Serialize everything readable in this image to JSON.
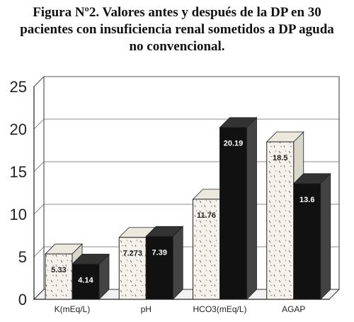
{
  "title_lines": [
    "Figura Nº2. Valores antes y después de la DP en 30",
    "pacientes con insuficiencia renal sometidos a DP aguda",
    "no convencional."
  ],
  "chart_data": {
    "type": "bar",
    "title": "Figura Nº2. Valores antes y después de la DP en 30 pacientes con insuficiencia renal sometidos a DP aguda no convencional.",
    "categories": [
      "K(mEq/L)",
      "pH",
      "HCO3(mEq/L)",
      "AGAP"
    ],
    "series": [
      {
        "values": [
          5.33,
          7.273,
          11.76,
          18.5
        ],
        "labels": [
          "5.33",
          "7.273",
          "11.76",
          "18.5"
        ],
        "color": "#f4f2ea"
      },
      {
        "values": [
          4.14,
          7.39,
          20.19,
          13.6
        ],
        "labels": [
          "4.14",
          "7.39",
          "20.19",
          "13.6"
        ],
        "color": "#111111"
      }
    ],
    "ylim": [
      0,
      25
    ],
    "yticks": [
      0,
      5,
      10,
      15,
      20,
      25
    ],
    "grid": true,
    "style": "3d",
    "xlabel": "",
    "ylabel": ""
  }
}
